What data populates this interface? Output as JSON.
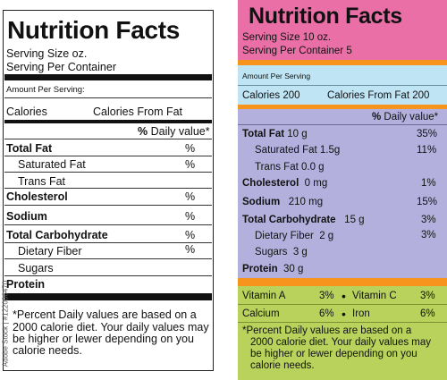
{
  "left_label": {
    "title": "Nutrition Facts",
    "serving_size": "Serving Size oz.",
    "serving_per_container": "Serving Per Container",
    "amount_per_serving": "Amount Per Serving:",
    "calories": "Calories",
    "calories_from_fat": "Calories From Fat",
    "daily_value": "% Daily value*",
    "rows": [
      {
        "name": "Total Fat",
        "pct": "%"
      },
      {
        "name": "Saturated Fat",
        "pct": "%"
      },
      {
        "name": "Trans Fat",
        "pct": ""
      },
      {
        "name": "Cholesterol",
        "pct": "%"
      },
      {
        "name": "Sodium",
        "pct": "%"
      },
      {
        "name": "Total Carbohydrate",
        "pct": "%"
      },
      {
        "name": "Dietary Fiber",
        "pct": "%"
      },
      {
        "name": "Sugars",
        "pct": ""
      },
      {
        "name": "Protein",
        "pct": ""
      }
    ],
    "footnote_1": "*Percent Daily values are based on a",
    "footnote_2": "2000 calorie diet. Your daily values may",
    "footnote_3": "be higher or lewer depending on you",
    "footnote_4": "calorie needs."
  },
  "right_label": {
    "title": "Nutrition Facts",
    "serving_size": "Serving Size 10 oz.",
    "serving_per_container": "Serving Per Container 5",
    "amount_per_serving": "Amount Per Serving",
    "calories": "Calories 200",
    "calories_from_fat": "Calories From Fat 200",
    "daily_value": "% Daily value*",
    "rows": [
      {
        "name": "Total Fat",
        "amount": "10 g",
        "pct": "35%"
      },
      {
        "name": "Saturated Fat",
        "amount": "1.5g",
        "pct": "11%"
      },
      {
        "name": "Trans Fat",
        "amount": "0.0 g",
        "pct": ""
      },
      {
        "name": "Cholesterol",
        "amount": "0 mg",
        "pct": "1%"
      },
      {
        "name": "Sodium",
        "amount": "210 mg",
        "pct": "15%"
      },
      {
        "name": "Total Carbohydrate",
        "amount": "15 g",
        "pct": "3%"
      },
      {
        "name": "Dietary Fiber",
        "amount": "2 g",
        "pct": "3%"
      },
      {
        "name": "Sugars",
        "amount": "3 g",
        "pct": ""
      },
      {
        "name": "Protein",
        "amount": "30 g",
        "pct": ""
      }
    ],
    "vitamins": [
      {
        "left_name": "Vitamin A",
        "left_pct": "3%",
        "right_name": "Vitamin C",
        "right_pct": "3%"
      },
      {
        "left_name": "Calcium",
        "left_pct": "6%",
        "right_name": "Iron",
        "right_pct": "6%"
      }
    ],
    "footnote_1": "*Percent Daily values are based on a",
    "footnote_2": "2000 calorie diet. Your daily values may",
    "footnote_3": "be higher or lewer depending on you",
    "footnote_4": "calorie needs.",
    "colors": {
      "header": "#ea6fa6",
      "calories_band": "#bfe4f3",
      "nutrients_band": "#b3b0dd",
      "vitamins_band": "#b9d25b",
      "separator": "#f7941d"
    }
  },
  "stock_id": "Adobe Stock | #122086470"
}
